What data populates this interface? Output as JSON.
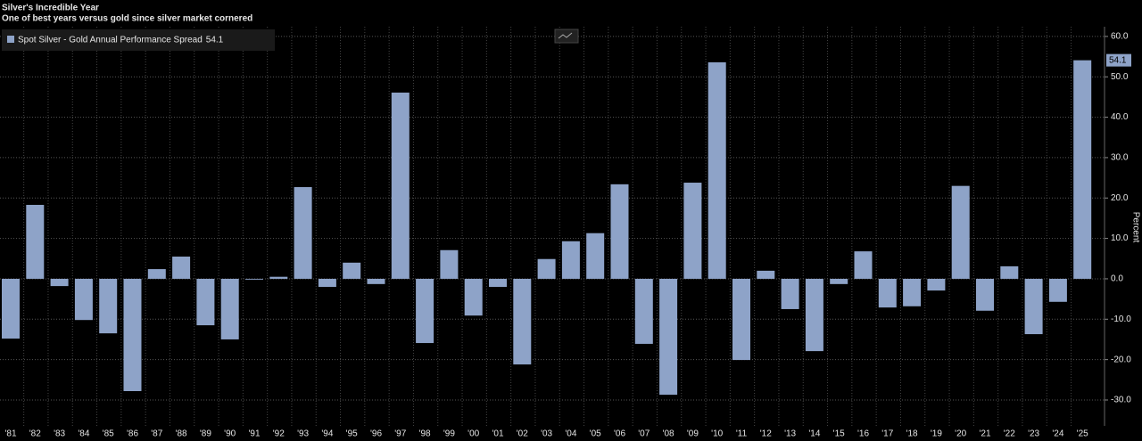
{
  "chart_data": {
    "type": "bar",
    "title": "Silver's Incredible Year",
    "subtitle": "One of best years versus gold since silver market cornered",
    "y_label": "Percent",
    "categories": [
      "'81",
      "'82",
      "'83",
      "'84",
      "'85",
      "'86",
      "'87",
      "'88",
      "'89",
      "'90",
      "'91",
      "'92",
      "'93",
      "'94",
      "'95",
      "'96",
      "'97",
      "'98",
      "'99",
      "'00",
      "'01",
      "'02",
      "'03",
      "'04",
      "'05",
      "'06",
      "'07",
      "'08",
      "'09",
      "'10",
      "'11",
      "'12",
      "'13",
      "'14",
      "'15",
      "'16",
      "'17",
      "'18",
      "'19",
      "'20",
      "'21",
      "'22",
      "'23",
      "'24",
      "'25"
    ],
    "series": [
      {
        "name": "Spot Silver - Gold Annual Performance Spread",
        "color": "#8ea3c8",
        "values": [
          -14.8,
          18.3,
          -1.8,
          -10.2,
          -13.5,
          -27.8,
          2.4,
          5.5,
          -11.5,
          -15.0,
          -0.2,
          0.5,
          22.7,
          -2.0,
          4.0,
          -1.3,
          46.1,
          -15.9,
          7.1,
          -9.1,
          -2.0,
          -21.2,
          4.9,
          9.3,
          11.3,
          23.4,
          -16.1,
          -28.7,
          23.8,
          53.6,
          -20.1,
          2.0,
          -7.5,
          -17.9,
          -1.3,
          6.8,
          -7.1,
          -6.8,
          -2.9,
          23.0,
          -7.9,
          3.1,
          -13.7,
          -5.7,
          54.1
        ]
      }
    ],
    "ylim": [
      -36.4,
      62.4
    ],
    "yticks": [
      {
        "value": 60,
        "label": "60.0"
      },
      {
        "value": 50,
        "label": "50.0"
      },
      {
        "value": 40,
        "label": "40.0"
      },
      {
        "value": 30,
        "label": "30.0"
      },
      {
        "value": 20,
        "label": "20.0"
      },
      {
        "value": 10,
        "label": "10.0"
      },
      {
        "value": 0,
        "label": "0.0"
      },
      {
        "value": -10,
        "label": "-10.0"
      },
      {
        "value": -20,
        "label": "-20.0"
      },
      {
        "value": -30,
        "label": "-30.0"
      }
    ],
    "grid": true
  }
}
